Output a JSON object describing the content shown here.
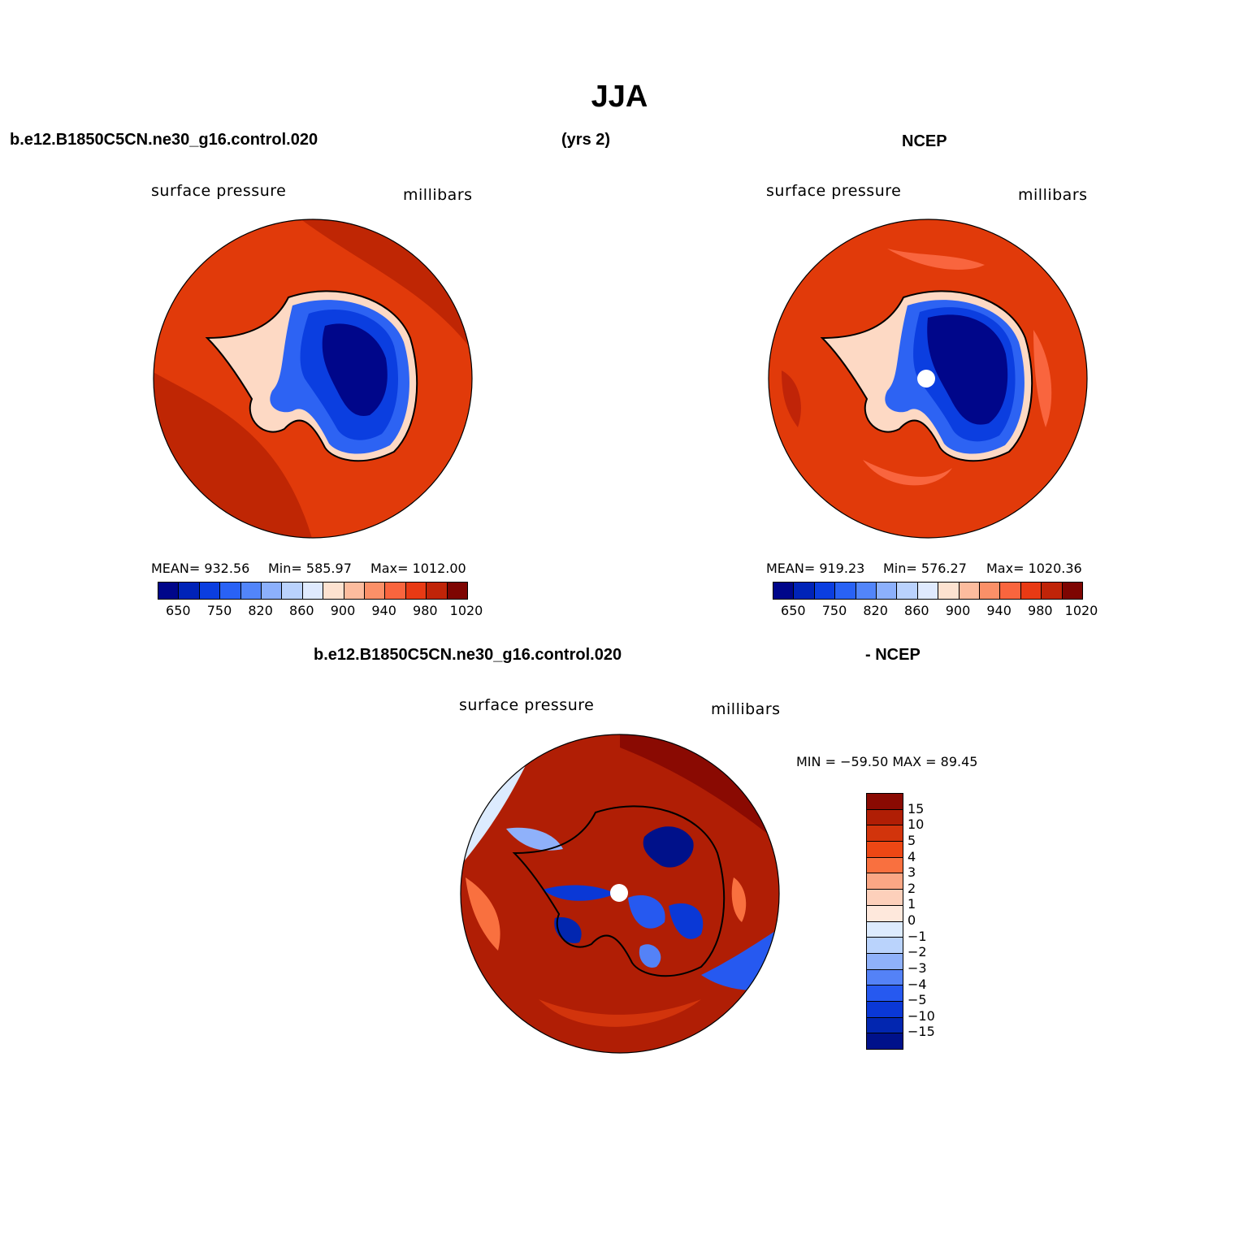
{
  "title": "JJA",
  "header": {
    "case_name": "b.e12.B1850C5CN.ne30_g16.control.020",
    "years": "(yrs 2)",
    "obs_name": "NCEP",
    "diff_case": "b.e12.B1850C5CN.ne30_g16.control.020",
    "diff_obs": "- NCEP"
  },
  "panels": {
    "model": {
      "variable": "surface pressure",
      "units": "millibars",
      "mean_text": "MEAN= 932.56",
      "min_text": "Min= 585.97",
      "max_text": "Max= 1012.00"
    },
    "obs": {
      "variable": "surface pressure",
      "units": "millibars",
      "mean_text": "MEAN= 919.23",
      "min_text": "Min= 576.27",
      "max_text": "Max= 1020.36"
    },
    "diff": {
      "variable": "surface pressure",
      "units": "millibars",
      "minmax_text": "MIN = −59.50 MAX =  89.45"
    }
  },
  "colorbar_horizontal": {
    "colors": [
      "#00068a",
      "#0023b8",
      "#0b3ee0",
      "#2962f5",
      "#5285fa",
      "#8cb0fc",
      "#bad2fd",
      "#dfeafe",
      "#fde2d0",
      "#fcbc9e",
      "#fb9068",
      "#f9653e",
      "#e83a14",
      "#c02408",
      "#7e0502"
    ],
    "tick_labels": [
      "650",
      "750",
      "820",
      "860",
      "900",
      "940",
      "980",
      "1020"
    ]
  },
  "colorbar_vertical": {
    "colors": [
      "#8a0a02",
      "#b01e05",
      "#d2340c",
      "#ec4714",
      "#f9703f",
      "#fba785",
      "#fdd0bb",
      "#fee8dc",
      "#dcebfe",
      "#bad3fc",
      "#8fb1fa",
      "#5482f7",
      "#2659f0",
      "#0a38d6",
      "#0226b0",
      "#00118a"
    ],
    "tick_labels": [
      "15",
      "10",
      "5",
      "4",
      "3",
      "2",
      "1",
      "0",
      "−1",
      "−2",
      "−3",
      "−4",
      "−5",
      "−10",
      "−15"
    ]
  }
}
